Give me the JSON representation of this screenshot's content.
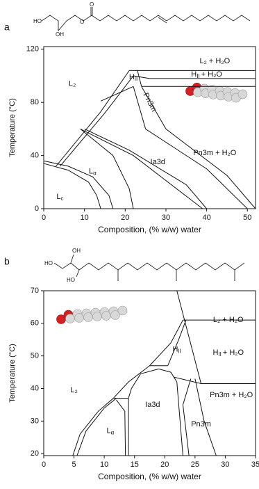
{
  "chart_data": [
    {
      "type": "phase-diagram",
      "panel": "a",
      "xlabel": "Composition, (% w/w) water",
      "ylabel": "Temperature (°C)",
      "xlim": [
        0,
        52
      ],
      "ylim": [
        0,
        122
      ],
      "xticks": [
        0,
        10,
        20,
        30,
        40,
        50
      ],
      "yticks": [
        0,
        40,
        80,
        120
      ],
      "structure_labels": [
        "HO",
        "OH",
        "O",
        "O"
      ],
      "boundaries": [
        {
          "x": [
            0,
            6,
            12,
            16,
            17
          ],
          "y": [
            36,
            32,
            24,
            10,
            0
          ]
        },
        {
          "x": [
            0,
            6,
            11,
            13,
            14
          ],
          "y": [
            34,
            29,
            20,
            10,
            0
          ]
        },
        {
          "x": [
            3,
            14,
            21
          ],
          "y": [
            32,
            73,
            104
          ]
        },
        {
          "x": [
            4,
            15,
            22
          ],
          "y": [
            32,
            72,
            100
          ]
        },
        {
          "x": [
            14,
            22
          ],
          "y": [
            81,
            92
          ]
        },
        {
          "x": [
            21,
            23,
            24
          ],
          "y": [
            104,
            104,
            92
          ]
        },
        {
          "x": [
            23,
            52
          ],
          "y": [
            104,
            104
          ]
        },
        {
          "x": [
            26,
            52
          ],
          "y": [
            98,
            98
          ]
        },
        {
          "x": [
            22,
            26
          ],
          "y": [
            100,
            98
          ]
        },
        {
          "x": [
            24,
            52
          ],
          "y": [
            92,
            92
          ]
        },
        {
          "x": [
            22,
            25,
            40,
            50
          ],
          "y": [
            92,
            60,
            30,
            0
          ]
        },
        {
          "x": [
            24,
            30,
            45,
            52
          ],
          "y": [
            92,
            60,
            25,
            0
          ]
        },
        {
          "x": [
            9,
            22,
            39
          ],
          "y": [
            60,
            40,
            0
          ]
        },
        {
          "x": [
            10,
            21,
            35,
            40
          ],
          "y": [
            60,
            44,
            18,
            0
          ]
        },
        {
          "x": [
            9,
            17,
            21,
            22
          ],
          "y": [
            60,
            40,
            15,
            0
          ]
        }
      ],
      "annotations": [
        {
          "x": 7,
          "y": 94,
          "text": "L₂"
        },
        {
          "x": 22,
          "y": 99,
          "text": "H",
          "sub": "II"
        },
        {
          "x": 42,
          "y": 111,
          "text": "L₂ + H₂O"
        },
        {
          "x": 40,
          "y": 101,
          "text": "H",
          "sub": "II",
          "after": "+ H₂O"
        },
        {
          "x": 26,
          "y": 80,
          "text": "Pn3m",
          "rotate": true
        },
        {
          "x": 42,
          "y": 42,
          "text": "Pn3m + H₂O"
        },
        {
          "x": 28,
          "y": 35,
          "text": "Ia3d"
        },
        {
          "x": 12,
          "y": 28,
          "text": "L",
          "sub": "α"
        },
        {
          "x": 4,
          "y": 9,
          "text": "L",
          "sub": "c"
        }
      ]
    },
    {
      "type": "phase-diagram",
      "panel": "b",
      "xlabel": "Composition, (% w/w) water",
      "ylabel": "Temperature (°C)",
      "xlim": [
        0,
        35
      ],
      "ylim": [
        19.4,
        70
      ],
      "xticks": [
        0,
        5,
        10,
        15,
        20,
        25,
        30,
        35
      ],
      "yticks": [
        20,
        30,
        40,
        50,
        60,
        70
      ],
      "structure_labels": [
        "HO",
        "OH",
        "HO"
      ],
      "boundaries": [
        {
          "x": [
            4.8,
            6,
            9,
            11.5
          ],
          "y": [
            19.4,
            26,
            33,
            37
          ]
        },
        {
          "x": [
            5.5,
            7,
            10,
            12
          ],
          "y": [
            19.4,
            27,
            34,
            37
          ]
        },
        {
          "x": [
            11.5,
            14
          ],
          "y": [
            37,
            37
          ]
        },
        {
          "x": [
            12,
            13.4,
            13.5
          ],
          "y": [
            36.5,
            33,
            19.4
          ]
        },
        {
          "x": [
            14,
            14
          ],
          "y": [
            37,
            19.4
          ]
        },
        {
          "x": [
            11.5,
            14,
            17.5,
            20.5
          ],
          "y": [
            37,
            42,
            47,
            47
          ]
        },
        {
          "x": [
            14,
            14.5,
            16,
            19,
            21,
            22,
            23
          ],
          "y": [
            37,
            40,
            44.5,
            46,
            45,
            42,
            19.4
          ]
        },
        {
          "x": [
            17.5,
            21,
            23
          ],
          "y": [
            47,
            54,
            61
          ]
        },
        {
          "x": [
            20.5,
            22.3,
            23.5
          ],
          "y": [
            47,
            55,
            61
          ]
        },
        {
          "x": [
            23,
            35
          ],
          "y": [
            61,
            61
          ]
        },
        {
          "x": [
            22,
            26
          ],
          "y": [
            70,
            41.5
          ]
        },
        {
          "x": [
            21.5,
            26,
            35
          ],
          "y": [
            43.5,
            41.5,
            41.5
          ]
        },
        {
          "x": [
            24.3,
            23,
            24
          ],
          "y": [
            43,
            35,
            19.4
          ]
        },
        {
          "x": [
            25,
            26.5,
            28.5
          ],
          "y": [
            43,
            30,
            19.4
          ]
        }
      ],
      "annotations": [
        {
          "x": 5,
          "y": 39.5,
          "text": "L₂"
        },
        {
          "x": 11,
          "y": 27,
          "text": "L",
          "sub": "α"
        },
        {
          "x": 18,
          "y": 35,
          "text": "Ia3d"
        },
        {
          "x": 26,
          "y": 29,
          "text": "Pn3m"
        },
        {
          "x": 31,
          "y": 38,
          "text": "Pn3m + H₂O"
        },
        {
          "x": 22,
          "y": 52,
          "text": "H",
          "sub": "II"
        },
        {
          "x": 30.5,
          "y": 51,
          "text": "H",
          "sub": "II",
          "after": "+ H₂O"
        },
        {
          "x": 30.5,
          "y": 61,
          "text": "L₂ + H₂O"
        }
      ]
    }
  ]
}
